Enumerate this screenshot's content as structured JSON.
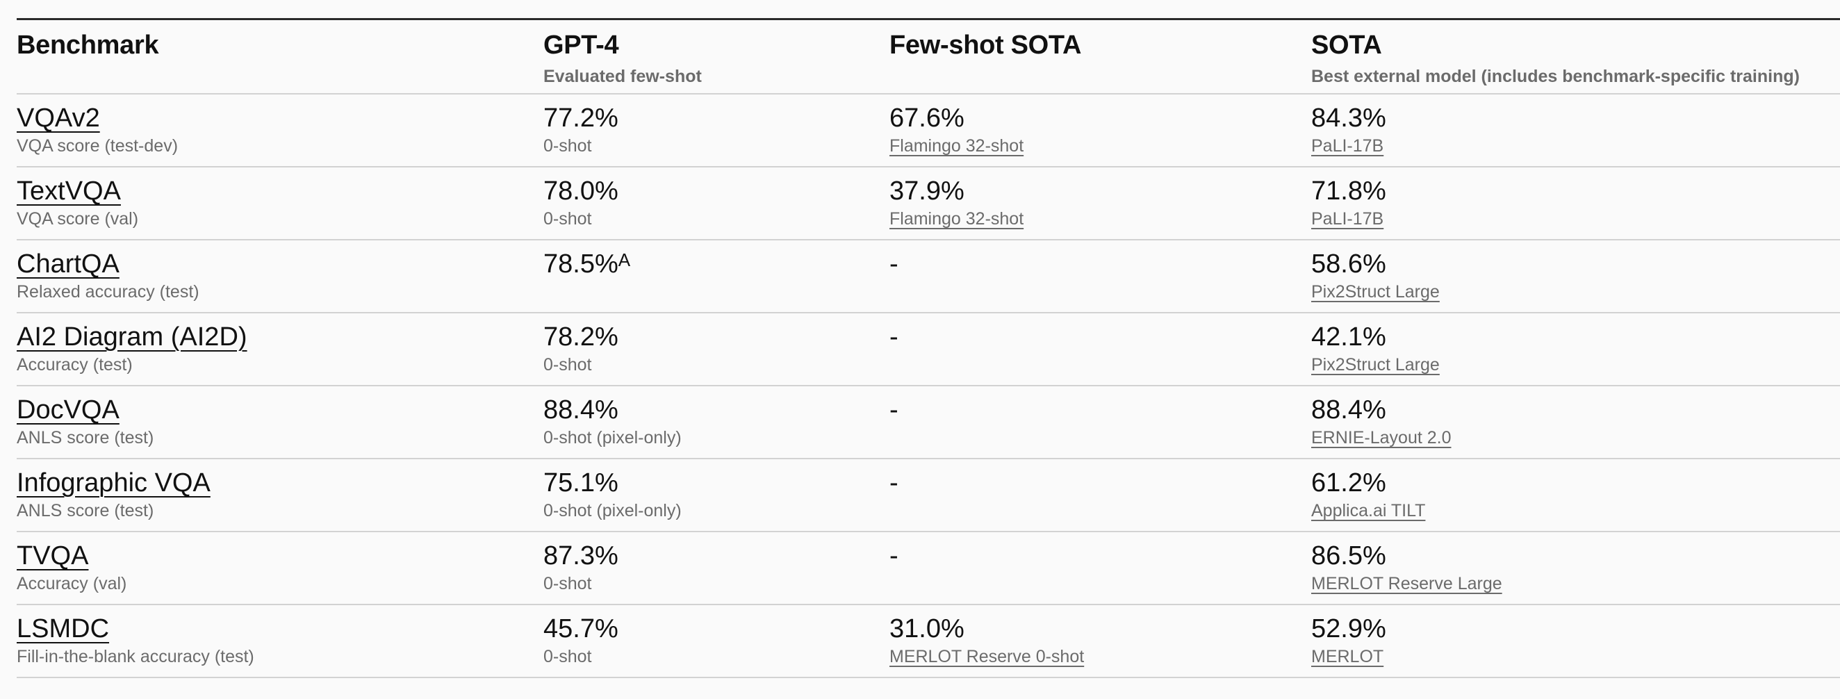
{
  "header": {
    "benchmark": "Benchmark",
    "gpt4": "GPT-4",
    "gpt4_sub": "Evaluated few-shot",
    "fewshot": "Few-shot SOTA",
    "sota": "SOTA",
    "sota_sub": "Best external model (includes benchmark-specific training)"
  },
  "rows": [
    {
      "name": "VQAv2",
      "metric": "VQA score (test-dev)",
      "gpt4": "77.2%",
      "gpt4_note": "0-shot",
      "fewshot": "67.6%",
      "fewshot_model": "Flamingo 32-shot",
      "sota": "84.3%",
      "sota_model": "PaLI-17B"
    },
    {
      "name": "TextVQA",
      "metric": "VQA score (val)",
      "gpt4": "78.0%",
      "gpt4_note": "0-shot",
      "fewshot": "37.9%",
      "fewshot_model": "Flamingo 32-shot",
      "sota": "71.8%",
      "sota_model": "PaLI-17B"
    },
    {
      "name": "ChartQA",
      "metric": "Relaxed accuracy (test)",
      "gpt4": "78.5%",
      "gpt4_sup": "A",
      "gpt4_note": "",
      "fewshot": "-",
      "fewshot_model": "",
      "sota": "58.6%",
      "sota_model": "Pix2Struct Large"
    },
    {
      "name": "AI2 Diagram (AI2D)",
      "metric": "Accuracy (test)",
      "gpt4": "78.2%",
      "gpt4_note": "0-shot",
      "fewshot": "-",
      "fewshot_model": "",
      "sota": "42.1%",
      "sota_model": "Pix2Struct Large"
    },
    {
      "name": "DocVQA",
      "metric": "ANLS score (test)",
      "gpt4": "88.4%",
      "gpt4_note": "0-shot (pixel-only)",
      "fewshot": "-",
      "fewshot_model": "",
      "sota": "88.4%",
      "sota_model": "ERNIE-Layout 2.0"
    },
    {
      "name": "Infographic VQA",
      "metric": "ANLS score (test)",
      "gpt4": "75.1%",
      "gpt4_note": "0-shot (pixel-only)",
      "fewshot": "-",
      "fewshot_model": "",
      "sota": "61.2%",
      "sota_model": "Applica.ai TILT"
    },
    {
      "name": "TVQA",
      "metric": "Accuracy (val)",
      "gpt4": "87.3%",
      "gpt4_note": "0-shot",
      "fewshot": "-",
      "fewshot_model": "",
      "sota": "86.5%",
      "sota_model": "MERLOT Reserve Large"
    },
    {
      "name": "LSMDC",
      "metric": "Fill-in-the-blank accuracy (test)",
      "gpt4": "45.7%",
      "gpt4_note": "0-shot",
      "fewshot": "31.0%",
      "fewshot_model": "MERLOT Reserve 0-shot",
      "sota": "52.9%",
      "sota_model": "MERLOT"
    }
  ]
}
